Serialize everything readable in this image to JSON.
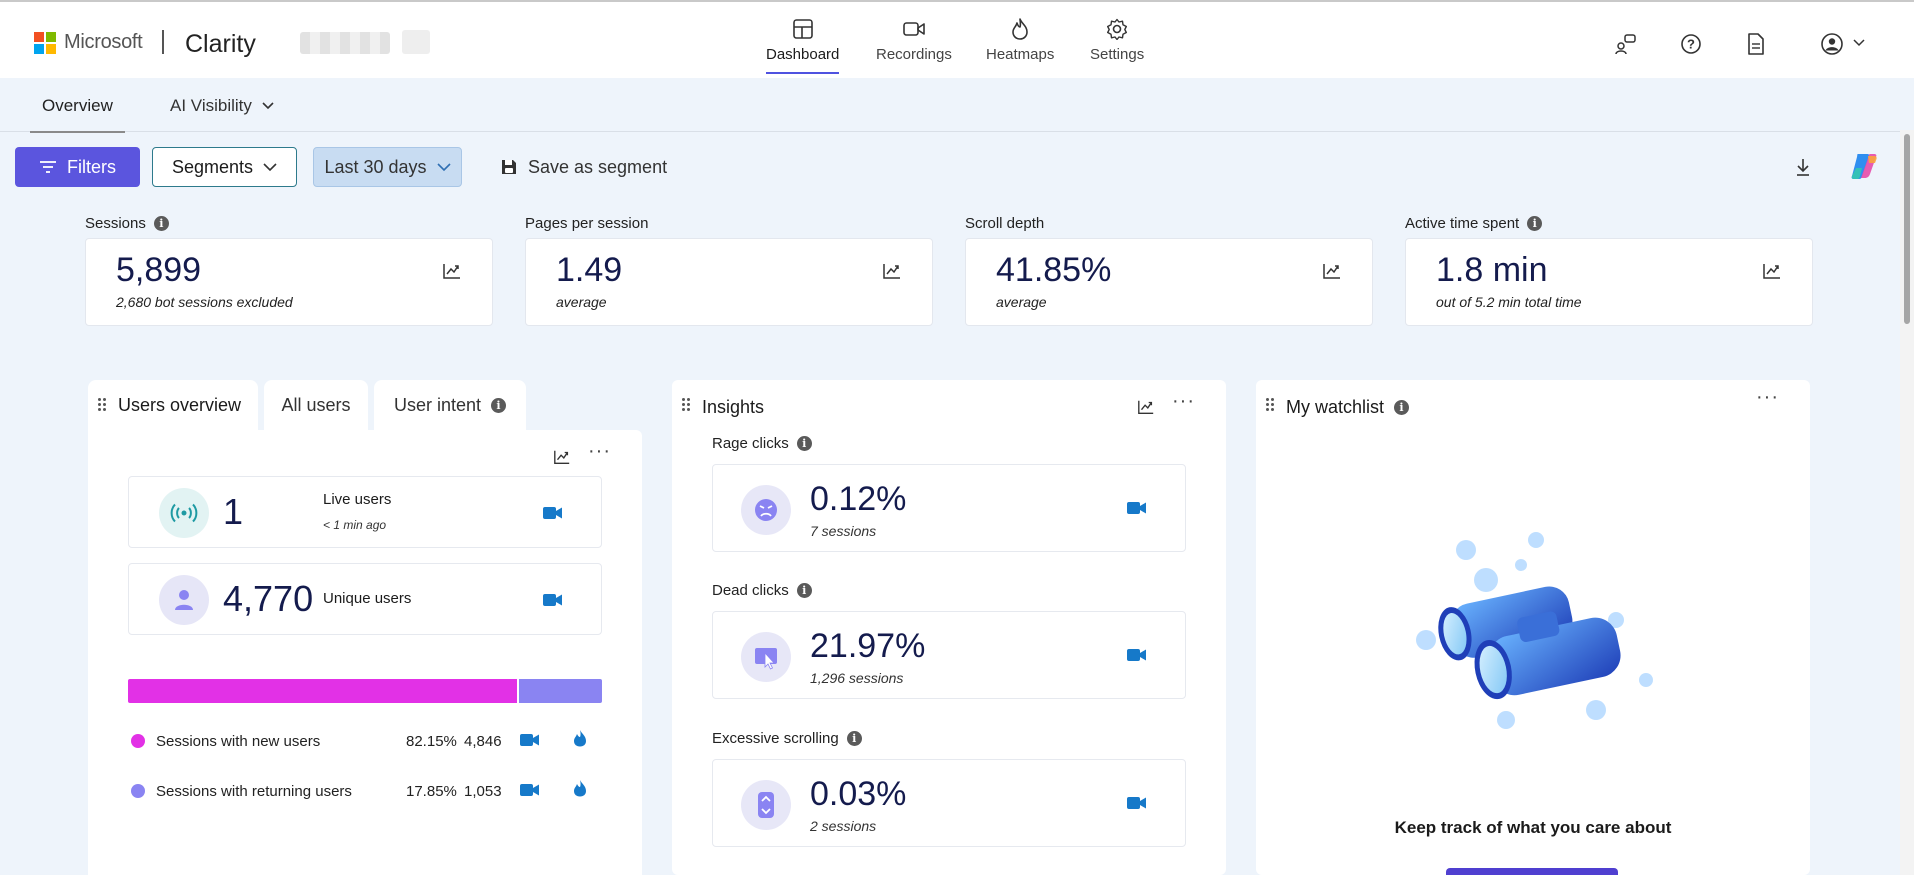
{
  "app": {
    "brand_company": "Microsoft",
    "brand_product": "Clarity"
  },
  "nav": [
    {
      "label": "Dashboard",
      "icon": "dashboard-icon",
      "active": true
    },
    {
      "label": "Recordings",
      "icon": "video-camera-icon"
    },
    {
      "label": "Heatmaps",
      "icon": "flame-icon"
    },
    {
      "label": "Settings",
      "icon": "gear-icon"
    }
  ],
  "subtabs": {
    "overview": "Overview",
    "ai_visibility": "AI Visibility"
  },
  "toolbar": {
    "filters": "Filters",
    "segments": "Segments",
    "date_range": "Last 30 days",
    "save_segment": "Save as segment"
  },
  "metrics": [
    {
      "label": "Sessions",
      "value": "5,899",
      "sub": "2,680 bot sessions excluded",
      "info": true
    },
    {
      "label": "Pages per session",
      "value": "1.49",
      "sub": "average",
      "info": false
    },
    {
      "label": "Scroll depth",
      "value": "41.85%",
      "sub": "average",
      "info": false
    },
    {
      "label": "Active time spent",
      "value": "1.8 min",
      "sub": "out of 5.2 min total time",
      "info": true
    }
  ],
  "users_panel": {
    "tabs": [
      "Users overview",
      "All users",
      "User intent"
    ],
    "live": {
      "value": "1",
      "label": "Live users",
      "sub": "< 1 min ago"
    },
    "unique": {
      "value": "4,770",
      "label": "Unique users"
    },
    "split": {
      "new_fraction": 0.8215,
      "new_color": "#e231e6",
      "returning_color": "#8a84f2"
    },
    "rows": [
      {
        "label": "Sessions with new users",
        "pct": "82.15%",
        "count": "4,846",
        "color": "#e231e6"
      },
      {
        "label": "Sessions with returning users",
        "pct": "17.85%",
        "count": "1,053",
        "color": "#8a84f2"
      }
    ]
  },
  "insights": {
    "title": "Insights",
    "items": [
      {
        "label": "Rage clicks",
        "pct": "0.12%",
        "sessions": "7 sessions",
        "icon": "angry-face-icon"
      },
      {
        "label": "Dead clicks",
        "pct": "21.97%",
        "sessions": "1,296 sessions",
        "icon": "dead-click-icon"
      },
      {
        "label": "Excessive scrolling",
        "pct": "0.03%",
        "sessions": "2 sessions",
        "icon": "scroll-icon"
      }
    ]
  },
  "watchlist": {
    "title": "My watchlist",
    "message": "Keep track of what you care about"
  }
}
